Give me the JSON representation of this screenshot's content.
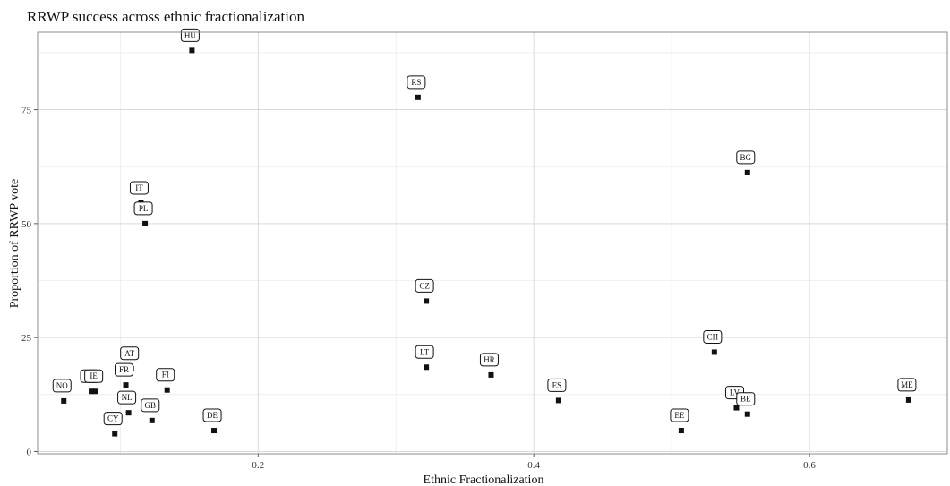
{
  "chart_data": {
    "type": "scatter",
    "title": "RRWP success across ethnic fractionalization",
    "xlabel": "Ethnic Fractionalization",
    "ylabel": "Proportion of RRWP vote",
    "xlim": [
      0.04,
      0.7
    ],
    "ylim": [
      -0.5,
      92
    ],
    "x_ticks": [
      0.2,
      0.4,
      0.6
    ],
    "x_tick_labels": [
      "0.2",
      "0.4",
      "0.6"
    ],
    "y_ticks": [
      0,
      25,
      50,
      75
    ],
    "y_tick_labels": [
      "0",
      "25",
      "50",
      "75"
    ],
    "grid": true,
    "legend": "none",
    "points": [
      {
        "label": "HU",
        "x": 0.152,
        "y": 88.0
      },
      {
        "label": "RS",
        "x": 0.316,
        "y": 77.7
      },
      {
        "label": "BG",
        "x": 0.555,
        "y": 61.2
      },
      {
        "label": "IT",
        "x": 0.115,
        "y": 54.5
      },
      {
        "label": "PL",
        "x": 0.118,
        "y": 50.0
      },
      {
        "label": "CZ",
        "x": 0.322,
        "y": 33.0
      },
      {
        "label": "CH",
        "x": 0.531,
        "y": 21.8
      },
      {
        "label": "AT",
        "x": 0.108,
        "y": 18.2
      },
      {
        "label": "LT",
        "x": 0.322,
        "y": 18.5
      },
      {
        "label": "HR",
        "x": 0.369,
        "y": 16.8
      },
      {
        "label": "FR",
        "x": 0.104,
        "y": 14.6
      },
      {
        "label": "FI",
        "x": 0.134,
        "y": 13.5
      },
      {
        "label": "IS",
        "x": 0.079,
        "y": 13.2
      },
      {
        "label": "IE",
        "x": 0.082,
        "y": 13.2
      },
      {
        "label": "NO",
        "x": 0.059,
        "y": 11.1
      },
      {
        "label": "ES",
        "x": 0.418,
        "y": 11.2
      },
      {
        "label": "ME",
        "x": 0.672,
        "y": 11.3
      },
      {
        "label": "LV",
        "x": 0.547,
        "y": 9.6
      },
      {
        "label": "BE",
        "x": 0.555,
        "y": 8.2
      },
      {
        "label": "NL",
        "x": 0.106,
        "y": 8.5
      },
      {
        "label": "GB",
        "x": 0.123,
        "y": 6.8
      },
      {
        "label": "DE",
        "x": 0.168,
        "y": 4.6
      },
      {
        "label": "EE",
        "x": 0.507,
        "y": 4.6
      },
      {
        "label": "CY",
        "x": 0.096,
        "y": 3.9
      }
    ],
    "colors": {
      "point": "#111111",
      "grid": "#d9d9d9",
      "border": "#8c8c8c"
    }
  }
}
